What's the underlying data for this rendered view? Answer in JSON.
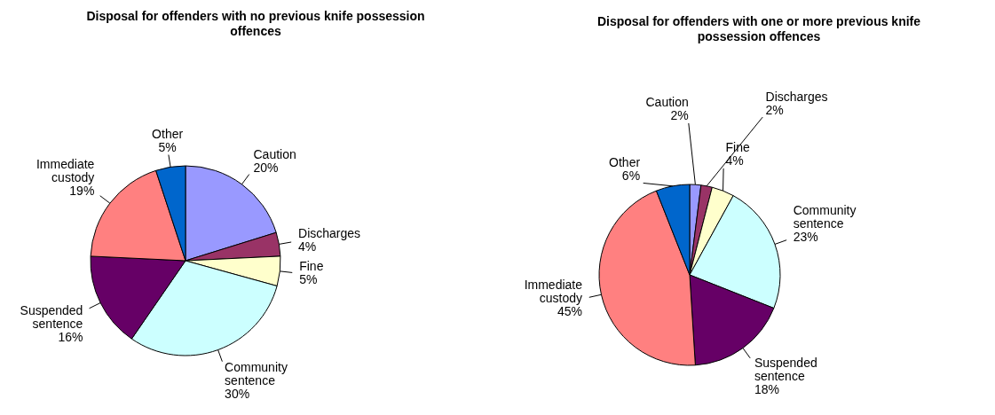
{
  "chart_data": [
    {
      "type": "pie",
      "title": "Disposal for offenders with no previous knife possession offences",
      "categories": [
        "Caution",
        "Discharges",
        "Fine",
        "Community sentence",
        "Suspended sentence",
        "Immediate custody",
        "Other"
      ],
      "values": [
        20,
        4,
        5,
        30,
        16,
        19,
        5
      ],
      "value_labels": [
        "20%",
        "4%",
        "5%",
        "30%",
        "16%",
        "19%",
        "5%"
      ],
      "colors": [
        "#9999ff",
        "#993366",
        "#ffffcc",
        "#ccffff",
        "#660066",
        "#ff8080",
        "#0066cc"
      ],
      "legend": false
    },
    {
      "type": "pie",
      "title": "Disposal for offenders with one or more previous knife possession offences",
      "categories": [
        "Caution",
        "Discharges",
        "Fine",
        "Community sentence",
        "Suspended sentence",
        "Immediate custody",
        "Other"
      ],
      "values": [
        2,
        2,
        4,
        23,
        18,
        45,
        6
      ],
      "value_labels": [
        "2%",
        "2%",
        "4%",
        "23%",
        "18%",
        "45%",
        "6%"
      ],
      "colors": [
        "#9999ff",
        "#993366",
        "#ffffcc",
        "#ccffff",
        "#660066",
        "#ff8080",
        "#0066cc"
      ],
      "legend": false
    }
  ]
}
